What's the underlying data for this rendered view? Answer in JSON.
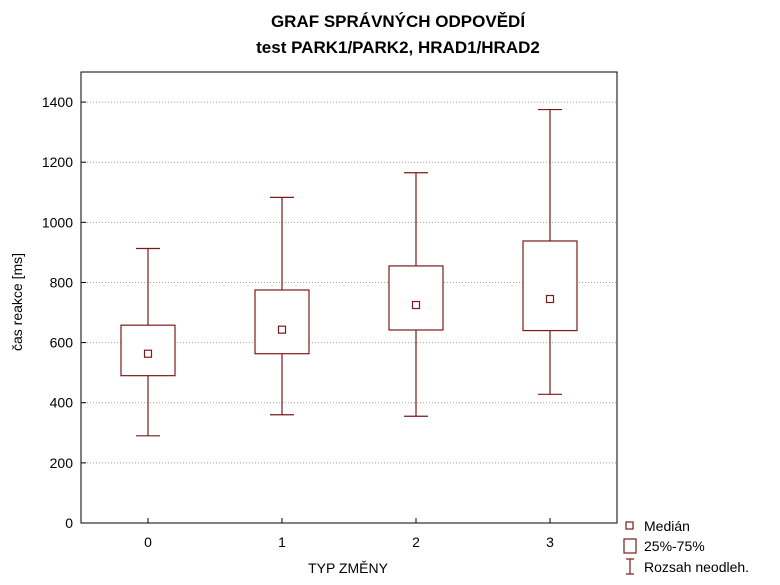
{
  "chart_data": {
    "type": "box",
    "title": "GRAF SPRÁVNÝCH ODPOVĚDÍ",
    "subtitle": "test PARK1/PARK2, HRAD1/HRAD2",
    "xlabel": "TYP ZMĚNY",
    "ylabel": "čas reakce [ms]",
    "ylim": [
      0,
      1500
    ],
    "yticks": [
      0,
      200,
      400,
      600,
      800,
      1000,
      1200,
      1400
    ],
    "grid": "horizontal dotted",
    "categories": [
      "0",
      "1",
      "2",
      "3"
    ],
    "boxes": [
      {
        "category": "0",
        "min": 290,
        "q1": 490,
        "median": 563,
        "q3": 658,
        "max": 913
      },
      {
        "category": "1",
        "min": 360,
        "q1": 563,
        "median": 643,
        "q3": 775,
        "max": 1083
      },
      {
        "category": "2",
        "min": 355,
        "q1": 642,
        "median": 725,
        "q3": 855,
        "max": 1165
      },
      {
        "category": "3",
        "min": 428,
        "q1": 640,
        "median": 745,
        "q3": 938,
        "max": 1375
      }
    ],
    "legend": {
      "position": "bottom-right",
      "median": "Medián",
      "box": "25%-75%",
      "whisker": "Rozsah neodleh."
    },
    "color": "#7a1a1a"
  }
}
